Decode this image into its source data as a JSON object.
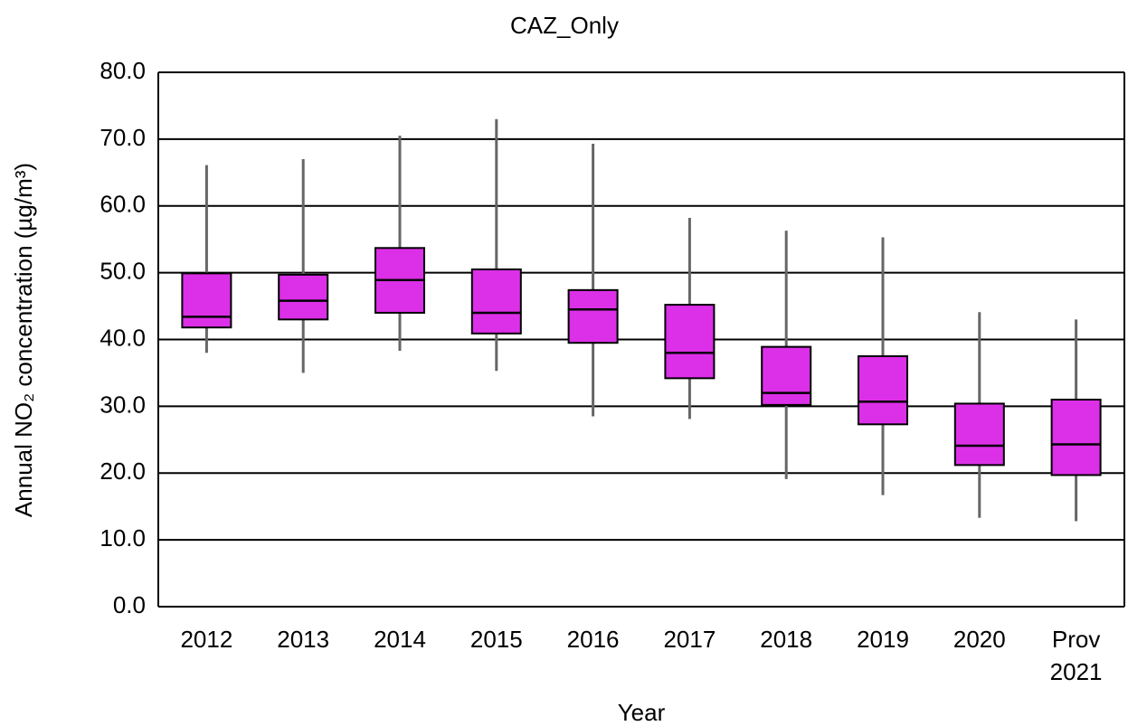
{
  "chart_data": {
    "type": "box",
    "title": "CAZ_Only",
    "x_label": "Year",
    "y_label": "Annual NO₂ concentration (µg/m³)",
    "categories": [
      "2012",
      "2013",
      "2014",
      "2015",
      "2016",
      "2017",
      "2018",
      "2019",
      "2020",
      "Prov 2021"
    ],
    "series": [
      {
        "name": "CAZ_Only",
        "color": "#dc2fe8",
        "min": [
          38.0,
          35.0,
          38.3,
          35.3,
          28.5,
          28.1,
          19.1,
          16.7,
          13.3,
          12.8
        ],
        "q1": [
          41.8,
          43.0,
          44.0,
          40.9,
          39.5,
          34.2,
          30.2,
          27.3,
          21.2,
          19.7
        ],
        "median": [
          43.4,
          45.8,
          48.9,
          44.0,
          44.5,
          38.0,
          32.0,
          30.7,
          24.1,
          24.3
        ],
        "q3": [
          49.9,
          49.7,
          53.7,
          50.5,
          47.4,
          45.2,
          38.9,
          37.5,
          30.4,
          31.0
        ],
        "max": [
          66.1,
          67.0,
          70.5,
          73.0,
          69.3,
          58.2,
          56.3,
          55.3,
          44.1,
          43.0
        ]
      }
    ],
    "ylim": [
      0,
      80
    ],
    "yticks": [
      {
        "value": 0,
        "label": "0.0"
      },
      {
        "value": 10,
        "label": "10.0"
      },
      {
        "value": 20,
        "label": "20.0"
      },
      {
        "value": 30,
        "label": "30.0"
      },
      {
        "value": 40,
        "label": "40.0"
      },
      {
        "value": 50,
        "label": "50.0"
      },
      {
        "value": 60,
        "label": "60.0"
      },
      {
        "value": 70,
        "label": "70.0"
      },
      {
        "value": 80,
        "label": "80.0"
      }
    ],
    "grid": true
  }
}
